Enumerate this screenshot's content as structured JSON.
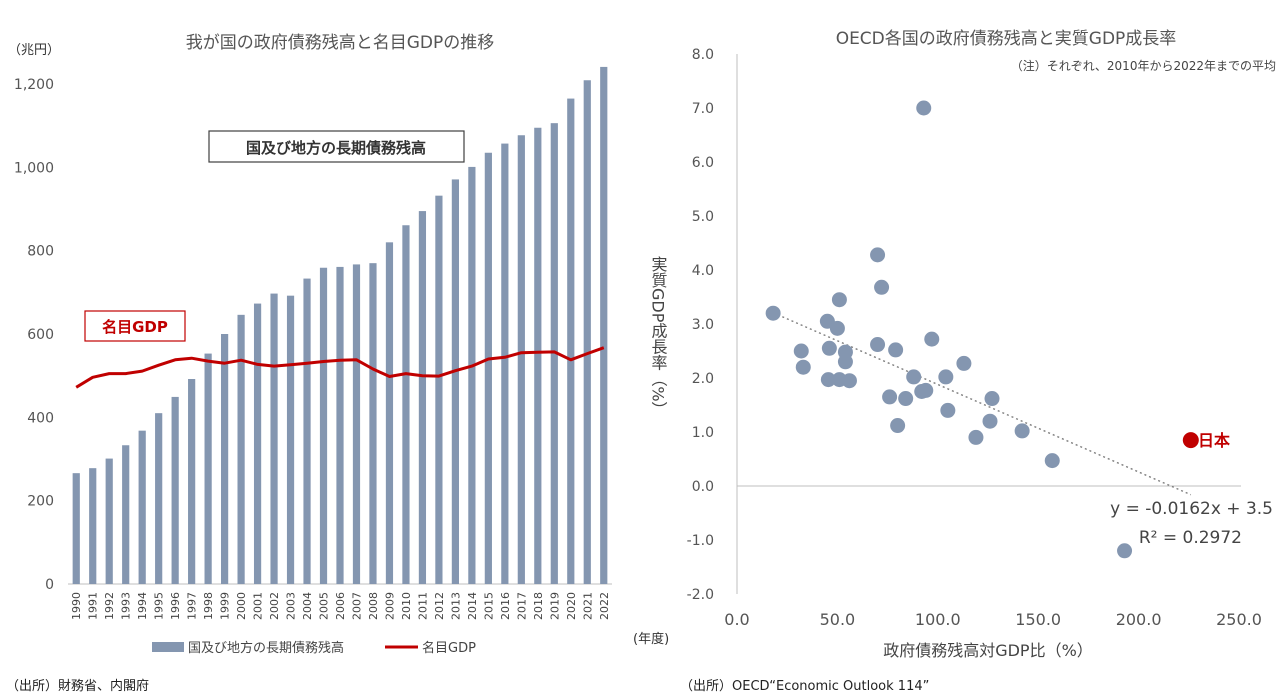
{
  "chart_data": [
    {
      "type": "bar+line",
      "title": "我が国の政府債務残高と名目GDPの推移",
      "yunit": "（兆円）",
      "xunit": "(年度)",
      "ylim": [
        0,
        1240
      ],
      "yticks": [
        "0",
        "200",
        "400",
        "600",
        "800",
        "1,000",
        "1,200"
      ],
      "ytick_values": [
        0,
        200,
        400,
        600,
        800,
        1000,
        1200
      ],
      "grid": false,
      "categories": [
        "1990",
        "1991",
        "1992",
        "1993",
        "1994",
        "1995",
        "1996",
        "1997",
        "1998",
        "1999",
        "2000",
        "2001",
        "2002",
        "2003",
        "2004",
        "2005",
        "2006",
        "2007",
        "2008",
        "2009",
        "2010",
        "2011",
        "2012",
        "2013",
        "2014",
        "2015",
        "2016",
        "2017",
        "2018",
        "2019",
        "2020",
        "2021",
        "2022"
      ],
      "series": [
        {
          "name": "国及び地方の長期債務残高",
          "type": "bar",
          "color": "#8496b0",
          "values": [
            266,
            278,
            301,
            333,
            368,
            410,
            449,
            492,
            553,
            600,
            646,
            673,
            697,
            692,
            733,
            759,
            761,
            767,
            770,
            820,
            861,
            895,
            932,
            971,
            1001,
            1035,
            1057,
            1077,
            1095,
            1106,
            1165,
            1209,
            1241
          ]
        },
        {
          "name": "名目GDP",
          "type": "line",
          "color": "#c00000",
          "values": [
            472,
            496,
            505,
            505,
            511,
            525,
            538,
            542,
            535,
            530,
            537,
            527,
            523,
            526,
            530,
            534,
            537,
            538,
            516,
            498,
            505,
            500,
            499,
            512,
            523,
            540,
            544,
            555,
            556,
            557,
            538,
            553,
            567
          ]
        }
      ],
      "annotations": [
        "国及び地方の長期債務残高",
        "名目GDP"
      ],
      "legend": "bottom",
      "source": "（出所）財務省、内閣府"
    },
    {
      "type": "scatter",
      "title": "OECD各国の政府債務残高と実質GDP成長率",
      "note": "（注）それぞれ、2010年から2022年までの平均",
      "xlabel": "政府債務残高対GDP比（%）",
      "ylabel": "実質GDP成長率（%）",
      "xlim": [
        0,
        250
      ],
      "ylim": [
        -2,
        8
      ],
      "xticks": [
        "0.0",
        "50.0",
        "100.0",
        "150.0",
        "200.0",
        "250.0"
      ],
      "xtick_values": [
        0,
        50,
        100,
        150,
        200,
        250
      ],
      "yticks": [
        "-2.0",
        "-1.0",
        "0.0",
        "1.0",
        "2.0",
        "3.0",
        "4.0",
        "5.0",
        "6.0",
        "7.0",
        "8.0"
      ],
      "ytick_values": [
        -2,
        -1,
        0,
        1,
        2,
        3,
        4,
        5,
        6,
        7,
        8
      ],
      "grid": false,
      "points_color": "#8496b0",
      "highlight_color": "#c00000",
      "points": [
        [
          18,
          3.2
        ],
        [
          32,
          2.5
        ],
        [
          33,
          2.2
        ],
        [
          45,
          3.05
        ],
        [
          46,
          2.55
        ],
        [
          50,
          2.92
        ],
        [
          51,
          3.45
        ],
        [
          45.5,
          1.97
        ],
        [
          51,
          1.97
        ],
        [
          54,
          2.48
        ],
        [
          54,
          2.3
        ],
        [
          56,
          1.95
        ],
        [
          70,
          4.28
        ],
        [
          70,
          2.62
        ],
        [
          72,
          3.68
        ],
        [
          76,
          1.65
        ],
        [
          79,
          2.52
        ],
        [
          80,
          1.12
        ],
        [
          84,
          1.62
        ],
        [
          88,
          2.02
        ],
        [
          92,
          1.75
        ],
        [
          93,
          7.0
        ],
        [
          94,
          1.77
        ],
        [
          97,
          2.72
        ],
        [
          104,
          2.02
        ],
        [
          105,
          1.4
        ],
        [
          113,
          2.27
        ],
        [
          119,
          0.9
        ],
        [
          126,
          1.2
        ],
        [
          127,
          1.62
        ],
        [
          142,
          1.02
        ],
        [
          157,
          0.47
        ],
        [
          193,
          -1.2
        ]
      ],
      "highlight": {
        "label": "日本",
        "x": 226,
        "y": 0.85
      },
      "trendline": {
        "slope": -0.0162,
        "intercept": 3.5,
        "x_range": [
          18,
          226
        ]
      },
      "equation": "y = -0.0162x + 3.5",
      "r2": "R² = 0.2972",
      "source": "（出所）OECD“Economic Outlook 114”"
    }
  ]
}
